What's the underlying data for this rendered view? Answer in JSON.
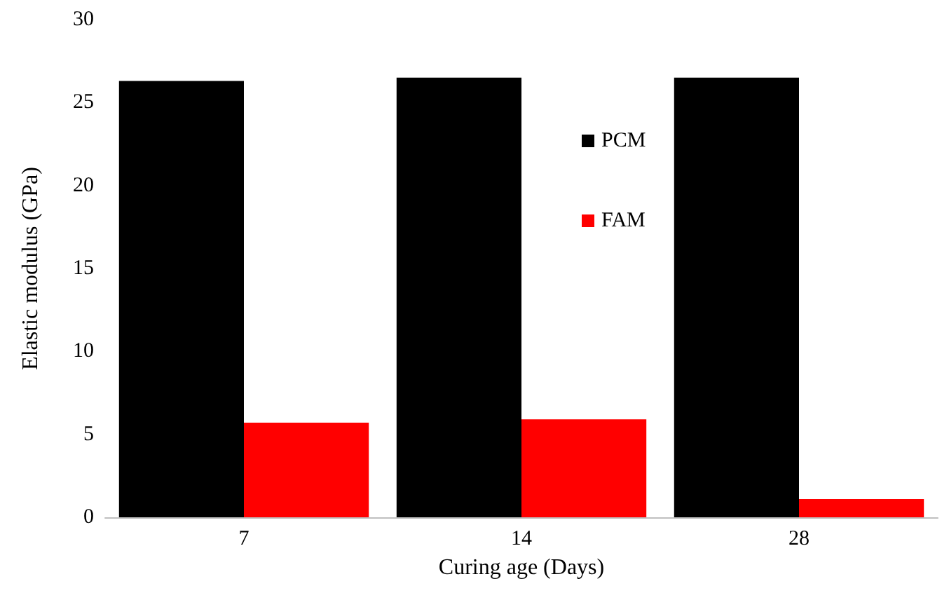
{
  "chart_data": {
    "type": "bar",
    "xlabel": "Curing age (Days)",
    "ylabel": "Elastic modulus (GPa)",
    "categories": [
      "7",
      "14",
      "28"
    ],
    "series": [
      {
        "name": "PCM",
        "color": "#000000",
        "values": [
          26.3,
          26.5,
          26.5
        ]
      },
      {
        "name": "FAM",
        "color": "#ff0000",
        "values": [
          5.7,
          5.9,
          1.1
        ]
      }
    ],
    "ylim": [
      0,
      30
    ],
    "yticks": [
      0,
      5,
      10,
      15,
      20,
      25,
      30
    ],
    "grid": false,
    "legend": "top right"
  }
}
